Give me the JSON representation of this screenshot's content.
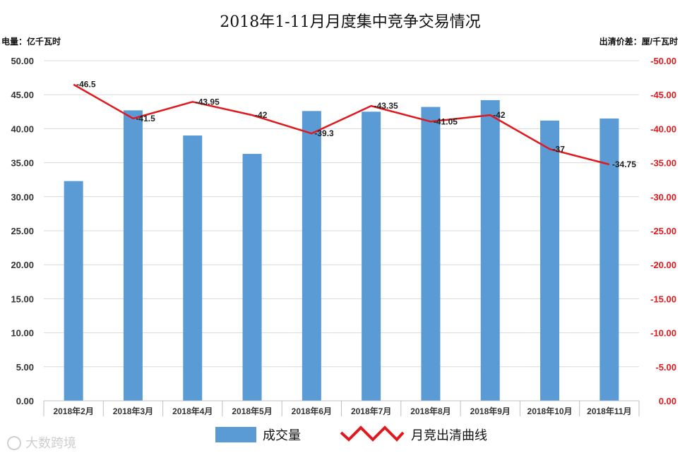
{
  "watermark": "大数跨境",
  "chart_data": {
    "type": "bar+line",
    "title": "2018年1-11月月度集中竞争交易情况",
    "left_axis_label": "电量：亿千瓦时",
    "right_axis_label": "出清价差：厘/千瓦时",
    "categories": [
      "2018年2月",
      "2018年3月",
      "2018年4月",
      "2018年5月",
      "2018年6月",
      "2018年7月",
      "2018年8月",
      "2018年9月",
      "2018年10月",
      "2018年11月"
    ],
    "left_axis": {
      "ylim": [
        0,
        50
      ],
      "ticks": [
        "0.00",
        "5.00",
        "10.00",
        "15.00",
        "20.00",
        "25.00",
        "30.00",
        "35.00",
        "40.00",
        "45.00",
        "50.00"
      ]
    },
    "right_axis": {
      "ylim": [
        0,
        -50
      ],
      "ticks": [
        "0.00",
        "-5.00",
        "-10.00",
        "-15.00",
        "-20.00",
        "-25.00",
        "-30.00",
        "-35.00",
        "-40.00",
        "-45.00",
        "-50.00"
      ]
    },
    "series": [
      {
        "name": "成交量",
        "type": "bar",
        "axis": "left",
        "color": "#5b9bd5",
        "values": [
          32.3,
          42.7,
          39.0,
          36.3,
          42.6,
          42.5,
          43.2,
          44.2,
          41.2,
          41.5
        ]
      },
      {
        "name": "月竞出清曲线",
        "type": "line",
        "axis": "right",
        "color": "#e0191e",
        "values": [
          -46.5,
          -41.5,
          -43.95,
          -42,
          -39.3,
          -43.35,
          -41.05,
          -42,
          -37,
          -34.75
        ],
        "labels": [
          "-46.5",
          "-41.5",
          "-43.95",
          "-42",
          "-39.3",
          "-43.35",
          "-41.05",
          "-42",
          "-37",
          "-34.75"
        ]
      }
    ],
    "grid": true,
    "legend": "bottom"
  }
}
